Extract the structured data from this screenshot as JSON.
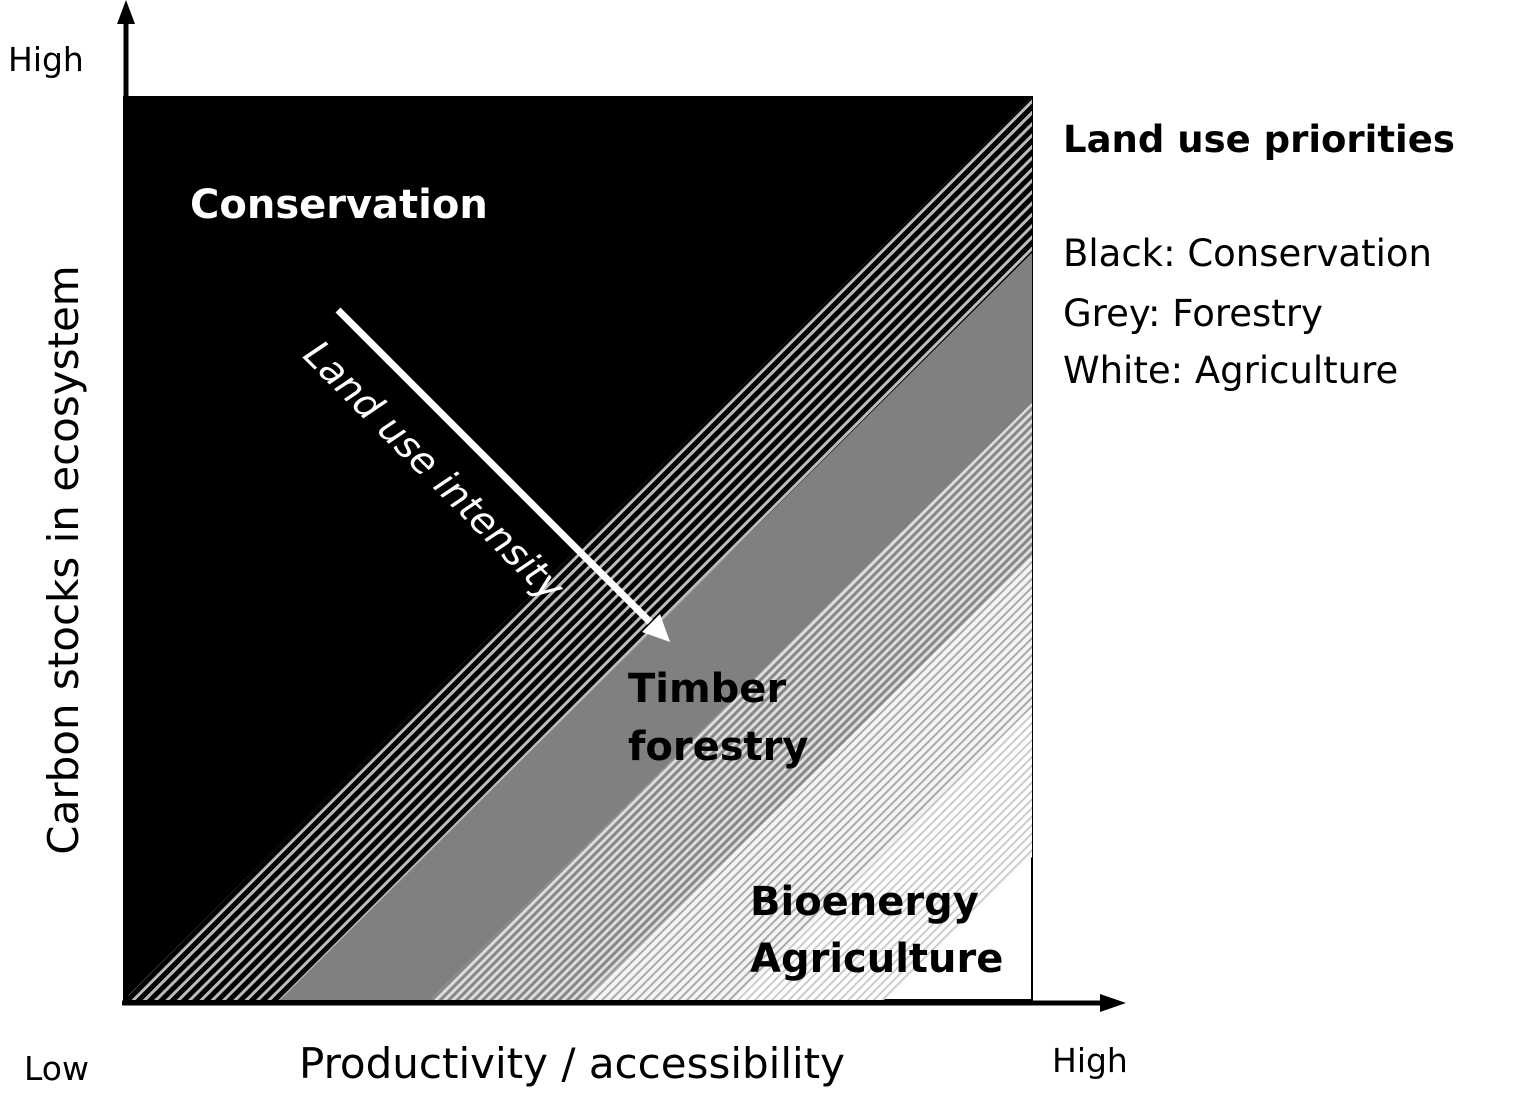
{
  "axes": {
    "y_high": "High",
    "y_label": "Carbon stocks in ecosystem",
    "x_low": "Low",
    "x_label": "Productivity / accessibility",
    "x_high": "High"
  },
  "regions": {
    "conservation": "Conservation",
    "timber": [
      "Timber",
      "forestry"
    ],
    "bioenergy": [
      "Bioenergy",
      "Agriculture"
    ]
  },
  "arrow_label": "Land use intensity",
  "legend": {
    "title": "Land use priorities",
    "items": [
      "Black: Conservation",
      "Grey: Forestry",
      "White: Agriculture"
    ]
  }
}
